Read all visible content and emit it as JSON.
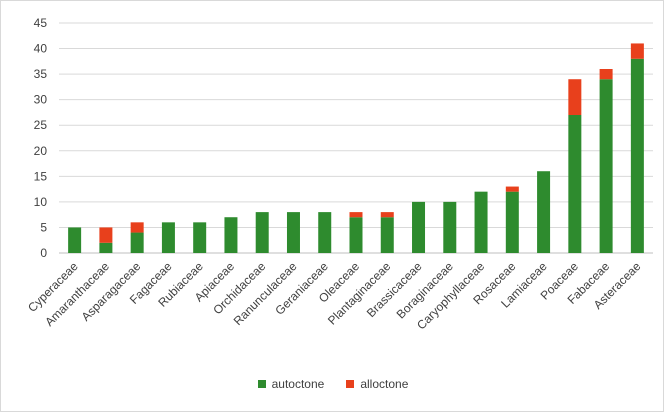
{
  "chart_data": {
    "type": "bar",
    "stacked": true,
    "categories": [
      "Cyperaceae",
      "Amaranthaceae",
      "Asparagaceae",
      "Fagaceae",
      "Rubiaceae",
      "Apiaceae",
      "Orchidaceae",
      "Ranunculaceae",
      "Geraniaceae",
      "Oleaceae",
      "Plantaginaceae",
      "Brassicaceae",
      "Boraginaceae",
      "Caryophyllaceae",
      "Rosaceae",
      "Lamiaceae",
      "Poaceae",
      "Fabaceae",
      "Asteraceae"
    ],
    "series": [
      {
        "name": "autoctone",
        "color": "#2e8b2e",
        "values": [
          5,
          2,
          4,
          6,
          6,
          7,
          8,
          8,
          8,
          7,
          7,
          10,
          10,
          12,
          12,
          16,
          27,
          34,
          38
        ]
      },
      {
        "name": "alloctone",
        "color": "#e8401c",
        "values": [
          0,
          3,
          2,
          0,
          0,
          0,
          0,
          0,
          0,
          1,
          1,
          0,
          0,
          0,
          1,
          0,
          7,
          2,
          3
        ]
      }
    ],
    "ylim": [
      0,
      45
    ],
    "yticks": [
      0,
      5,
      10,
      15,
      20,
      25,
      30,
      35,
      40,
      45
    ],
    "grid": true,
    "legend": "bottom",
    "title": "",
    "xlabel": "",
    "ylabel": ""
  }
}
